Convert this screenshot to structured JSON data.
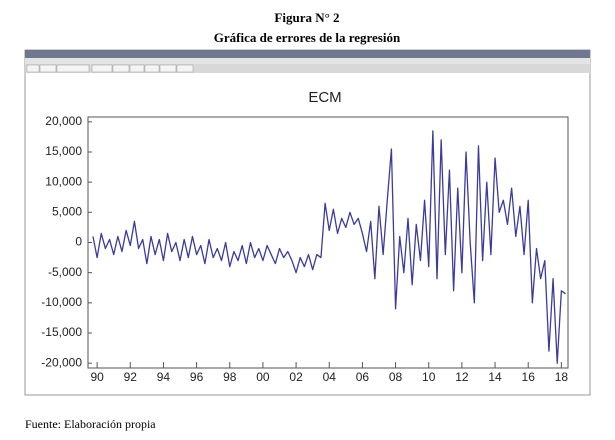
{
  "figure": {
    "label": "Figura N° 2",
    "caption": "Gráfica de errores de la regresión",
    "source": "Fuente: Elaboración propia"
  },
  "chart_data": {
    "type": "line",
    "title": "ECM",
    "color": "#3b3b9c",
    "x": [
      1989.75,
      1990,
      1990.25,
      1990.5,
      1990.75,
      1991,
      1991.25,
      1991.5,
      1991.75,
      1992,
      1992.25,
      1992.5,
      1992.75,
      1993,
      1993.25,
      1993.5,
      1993.75,
      1994,
      1994.25,
      1994.5,
      1994.75,
      1995,
      1995.25,
      1995.5,
      1995.75,
      1996,
      1996.25,
      1996.5,
      1996.75,
      1997,
      1997.25,
      1997.5,
      1997.75,
      1998,
      1998.25,
      1998.5,
      1998.75,
      1999,
      1999.25,
      1999.5,
      1999.75,
      2000,
      2000.25,
      2000.5,
      2000.75,
      2001,
      2001.25,
      2001.5,
      2001.75,
      2002,
      2002.25,
      2002.5,
      2002.75,
      2003,
      2003.25,
      2003.5,
      2003.75,
      2004,
      2004.25,
      2004.5,
      2004.75,
      2005,
      2005.25,
      2005.5,
      2005.75,
      2006,
      2006.25,
      2006.5,
      2006.75,
      2007,
      2007.25,
      2007.5,
      2007.75,
      2008,
      2008.25,
      2008.5,
      2008.75,
      2009,
      2009.25,
      2009.5,
      2009.75,
      2010,
      2010.25,
      2010.5,
      2010.75,
      2011,
      2011.25,
      2011.5,
      2011.75,
      2012,
      2012.25,
      2012.5,
      2012.75,
      2013,
      2013.25,
      2013.5,
      2013.75,
      2014,
      2014.25,
      2014.5,
      2014.75,
      2015,
      2015.25,
      2015.5,
      2015.75,
      2016,
      2016.25,
      2016.5,
      2016.75,
      2017,
      2017.25,
      2017.5,
      2017.75,
      2018,
      2018.25
    ],
    "values": [
      1000,
      -2500,
      1500,
      -1000,
      500,
      -2000,
      1000,
      -1500,
      2000,
      -500,
      3500,
      -1000,
      500,
      -3500,
      1000,
      -2000,
      500,
      -3000,
      1500,
      -1500,
      0,
      -3000,
      500,
      -2500,
      1000,
      -2000,
      -500,
      -3500,
      500,
      -2500,
      -1000,
      -3000,
      0,
      -4000,
      -1500,
      -3000,
      -500,
      -3500,
      0,
      -2500,
      -1000,
      -3000,
      -500,
      -2000,
      -3500,
      -1000,
      -2500,
      -1500,
      -3000,
      -5000,
      -2500,
      -4000,
      -2000,
      -4500,
      -2000,
      -2500,
      6500,
      2000,
      5500,
      1500,
      4000,
      2500,
      5000,
      3000,
      4000,
      1500,
      -1500,
      3500,
      -6000,
      6000,
      -2000,
      7000,
      15500,
      -11000,
      1000,
      -5000,
      4000,
      -7000,
      3000,
      -3000,
      7000,
      -4000,
      18500,
      -6000,
      17000,
      -2000,
      12000,
      -8000,
      9000,
      -5000,
      15000,
      0,
      -10000,
      16000,
      -3000,
      10000,
      -2000,
      14000,
      5000,
      7000,
      3000,
      9000,
      1000,
      6000,
      -2000,
      7000,
      -10000,
      -1000,
      -6000,
      -3000,
      -18000,
      -6000,
      -20000,
      -8000,
      -8500
    ],
    "xlim": [
      1989.45,
      2018.4
    ],
    "xticks": [
      {
        "value": 1990,
        "label": "90"
      },
      {
        "value": 1992,
        "label": "92"
      },
      {
        "value": 1994,
        "label": "94"
      },
      {
        "value": 1996,
        "label": "96"
      },
      {
        "value": 1998,
        "label": "98"
      },
      {
        "value": 2000,
        "label": "00"
      },
      {
        "value": 2002,
        "label": "02"
      },
      {
        "value": 2004,
        "label": "04"
      },
      {
        "value": 2006,
        "label": "06"
      },
      {
        "value": 2008,
        "label": "08"
      },
      {
        "value": 2010,
        "label": "10"
      },
      {
        "value": 2012,
        "label": "12"
      },
      {
        "value": 2014,
        "label": "14"
      },
      {
        "value": 2016,
        "label": "16"
      },
      {
        "value": 2018,
        "label": "18"
      }
    ],
    "ylim": [
      -20800,
      20800
    ],
    "yticks": [
      {
        "value": 20000,
        "label": "20,000"
      },
      {
        "value": 15000,
        "label": "15,000"
      },
      {
        "value": 10000,
        "label": "10,000"
      },
      {
        "value": 5000,
        "label": "5,000"
      },
      0,
      {
        "value": -5000,
        "label": "-5,000"
      },
      {
        "value": -10000,
        "label": "-10,000"
      },
      {
        "value": -15000,
        "label": "-15,000"
      },
      {
        "value": -20000,
        "label": "-20,000"
      }
    ]
  }
}
